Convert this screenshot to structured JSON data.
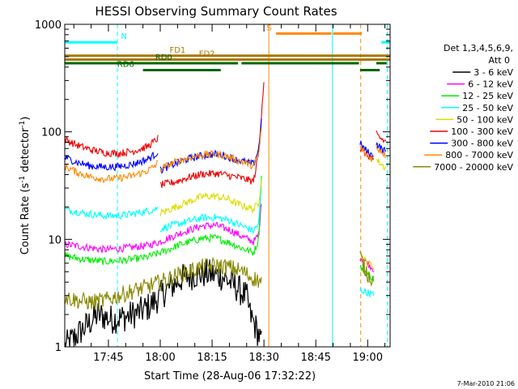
{
  "chart_data": {
    "type": "line",
    "title": "HESSI Observing Summary Count Rates",
    "xlabel": "Start Time (28-Aug-06 17:32:22)",
    "ylabel_main": "Count Rate (s",
    "ylabel_sup1": "-1",
    "ylabel_mid": " detector",
    "ylabel_sup2": "-1",
    "ylabel_end": ")",
    "yscale": "log",
    "ylim": [
      1,
      1000
    ],
    "xlim_minutes_after_1730": [
      2.37,
      96.5
    ],
    "x_ticks": [
      {
        "label": "17:45",
        "m": 15
      },
      {
        "label": "18:00",
        "m": 30
      },
      {
        "label": "18:15",
        "m": 45
      },
      {
        "label": "18:30",
        "m": 60
      },
      {
        "label": "18:45",
        "m": 75
      },
      {
        "label": "19:00",
        "m": 90
      }
    ],
    "y_ticks": [
      {
        "label": "1",
        "v": 1
      },
      {
        "label": "10",
        "v": 10
      },
      {
        "label": "100",
        "v": 100
      },
      {
        "label": "1000",
        "v": 1000
      }
    ],
    "legend_header": [
      "Det 1,3,4,5,6,9,",
      "Att 0"
    ],
    "series": [
      {
        "name": "3 - 6 keV",
        "color": "#000000",
        "segments": [
          {
            "m": [
              2.4,
              8,
              12,
              16,
              20,
              24,
              27,
              30,
              33,
              36,
              40,
              44,
              48,
              52,
              55,
              56,
              58.5,
              59.5
            ],
            "v": [
              1.0,
              1.5,
              2.0,
              1.8,
              1.9,
              2.1,
              2.4,
              3.0,
              3.6,
              4.3,
              4.7,
              4.8,
              4.5,
              3.6,
              2.9,
              2.0,
              1.3,
              1.0
            ]
          }
        ]
      },
      {
        "name": "6 - 12 keV",
        "color": "#ff00ff",
        "segments": [
          {
            "m": [
              2.4,
              8,
              14,
              20,
              26,
              30,
              36,
              42,
              46,
              50,
              54,
              57,
              58.5,
              59.5
            ],
            "v": [
              9,
              8.5,
              8,
              8.3,
              8.7,
              9.5,
              11.5,
              13.3,
              13.5,
              12.3,
              10.5,
              9.5,
              11,
              27
            ]
          },
          {
            "m": [
              87.8,
              90,
              92
            ],
            "v": [
              6.8,
              6,
              5.2
            ]
          }
        ]
      },
      {
        "name": "12 - 25 keV",
        "color": "#00ee00",
        "segments": [
          {
            "m": [
              2.4,
              8,
              14,
              20,
              26,
              30,
              36,
              42,
              46,
              50,
              54,
              57,
              58.5,
              59.5
            ],
            "v": [
              7,
              6.5,
              6.2,
              6.4,
              6.8,
              7.5,
              9,
              10.2,
              10.3,
              9.3,
              8.2,
              7.5,
              10,
              60
            ]
          },
          {
            "m": [
              87.8,
              90,
              92
            ],
            "v": [
              5.5,
              4.8,
              4.2
            ]
          }
        ]
      },
      {
        "name": "25 - 50 keV",
        "color": "#00ffff",
        "segments": [
          {
            "m": [
              2.4,
              8,
              14,
              20,
              26,
              29.5
            ],
            "v": [
              19,
              17.5,
              16.5,
              16.8,
              18.2,
              19.5
            ]
          },
          {
            "m": [
              30,
              36,
              42,
              46,
              50,
              52,
              55,
              57,
              58.5,
              59.5
            ],
            "v": [
              12.5,
              14.2,
              15.8,
              16,
              15,
              14,
              12.8,
              12,
              14,
              40
            ]
          },
          {
            "m": [
              87.8,
              89,
              90,
              92
            ],
            "v": [
              3.4,
              3.3,
              3.2,
              3.0
            ]
          }
        ]
      },
      {
        "name": "50 - 100 keV",
        "color": "#dddd00",
        "segments": [
          {
            "m": [
              30,
              36,
              42,
              46,
              50,
              52,
              55,
              57,
              58.5,
              59.5
            ],
            "v": [
              17.5,
              21,
              25,
              25.2,
              23.5,
              21.5,
              20,
              19,
              22,
              45
            ]
          },
          {
            "m": [
              87.8,
              89,
              90,
              91,
              92
            ],
            "v": [
              7.5,
              6.5,
              6,
              5.8,
              5.5
            ]
          },
          {
            "m": [
              92.5,
              94,
              95.5
            ],
            "v": [
              55,
              50,
              45
            ]
          }
        ]
      },
      {
        "name": "100 - 300 keV",
        "color": "#ee0000",
        "segments": [
          {
            "m": [
              2.4,
              6,
              10,
              14,
              18,
              22,
              26,
              28,
              29.5
            ],
            "v": [
              85,
              75,
              68,
              64,
              63,
              66,
              72,
              80,
              88
            ]
          },
          {
            "m": [
              30,
              34,
              38,
              42,
              46,
              48,
              50,
              52,
              55,
              57,
              58.5,
              59.5,
              60
            ],
            "v": [
              32,
              34,
              37.5,
              40.5,
              41,
              40.5,
              39,
              38,
              36,
              34.5,
              65,
              190,
              300
            ]
          },
          {
            "m": [
              87.8,
              89,
              90,
              91,
              92
            ],
            "v": [
              70,
              64,
              60,
              58,
              55
            ]
          },
          {
            "m": [
              92.5,
              93.5,
              95.5
            ],
            "v": [
              95,
              88,
              80
            ]
          }
        ]
      },
      {
        "name": "300 - 800 keV",
        "color": "#0000ff",
        "segments": [
          {
            "m": [
              2.4,
              6,
              10,
              14,
              18,
              22,
              26,
              28,
              29.5
            ],
            "v": [
              58,
              52,
              48,
              47,
              47.5,
              50,
              55,
              60,
              66
            ]
          },
          {
            "m": [
              30,
              34,
              38,
              42,
              46,
              48,
              50,
              52,
              55,
              57,
              58.5,
              59.5
            ],
            "v": [
              44,
              50,
              56,
              60,
              62,
              61,
              58,
              55,
              52,
              50,
              70,
              150
            ]
          },
          {
            "m": [
              87.8,
              89,
              90,
              91,
              92
            ],
            "v": [
              78,
              70,
              65,
              61,
              58
            ]
          },
          {
            "m": [
              92.5,
              94,
              95.5
            ],
            "v": [
              78,
              70,
              64
            ]
          }
        ]
      },
      {
        "name": "800 - 7000 keV",
        "color": "#ff8800",
        "segments": [
          {
            "m": [
              2.4,
              6,
              10,
              14,
              18,
              22,
              26,
              28,
              29.5
            ],
            "v": [
              48,
              42,
              38,
              36.5,
              37,
              39,
              43,
              47,
              52
            ]
          },
          {
            "m": [
              30,
              34,
              38,
              42,
              46,
              48,
              50,
              52,
              55,
              57,
              58.5,
              59.5
            ],
            "v": [
              45,
              52,
              57,
              61,
              62,
              61,
              58,
              55,
              51,
              48,
              62,
              130
            ]
          },
          {
            "m": [
              87.8,
              89,
              90,
              91,
              92
            ],
            "v": [
              72,
              65,
              60,
              57,
              55
            ]
          },
          {
            "m": [
              92.5,
              94,
              95.5
            ],
            "v": [
              72,
              66,
              60
            ]
          }
        ]
      },
      {
        "name": "7000 - 20000 keV",
        "color": "#888800",
        "segments": [
          {
            "m": [
              2.4,
              6,
              10,
              14,
              18,
              22,
              26,
              30,
              34,
              38,
              42,
              46,
              50,
              54,
              56,
              58,
              59.5
            ],
            "v": [
              2.9,
              2.7,
              2.6,
              2.7,
              3.0,
              3.3,
              3.6,
              4.0,
              4.5,
              5.0,
              5.5,
              5.7,
              5.5,
              5.0,
              4.5,
              4.2,
              4.0
            ]
          },
          {
            "m": [
              87.8,
              89,
              90,
              91,
              92
            ],
            "v": [
              7,
              5.5,
              4.8,
              4.4,
              4.0
            ]
          }
        ]
      }
    ],
    "flag_bars": [
      {
        "label": "N",
        "color": "#00ffff",
        "level": 680,
        "ranges": [
          [
            2.37,
            17.5
          ],
          [
            94,
            96.5
          ]
        ],
        "label_m": 19.5
      },
      {
        "label": "S",
        "color": "#ff8800",
        "level": 820,
        "ranges": [
          [
            63.5,
            79.5
          ],
          [
            80,
            88.3
          ]
        ],
        "label_m": 61.5
      },
      {
        "label": "FD1",
        "color": "#aa7700",
        "level": 510,
        "ranges": [
          [
            2.37,
            96.5
          ]
        ],
        "label_m": 35
      },
      {
        "label": "FD2",
        "color": "#aa7700",
        "level": 470,
        "ranges": [
          [
            2.37,
            96.5
          ]
        ],
        "label_m": 43.5
      },
      {
        "label": "RD0",
        "color": "#006600",
        "level": 435,
        "ranges": [
          [
            2.37,
            52.5
          ],
          [
            53.5,
            87.5
          ],
          [
            92.5,
            95.5
          ]
        ],
        "label_m": 31
      },
      {
        "label": "RD6",
        "color": "#006600",
        "level": 375,
        "ranges": [
          [
            25,
            47.5
          ],
          [
            87.8,
            93.5
          ]
        ],
        "label_m": 20
      }
    ],
    "vlines": [
      {
        "m": 17.6,
        "color": "#00ffff",
        "dash": true
      },
      {
        "m": 61.4,
        "color": "#ff8800",
        "dash": false
      },
      {
        "m": 79.8,
        "color": "#00ffff",
        "dash": false
      },
      {
        "m": 88.0,
        "color": "#ff8800",
        "dash": true
      },
      {
        "m": 95.7,
        "color": "#00ffff",
        "dash": true
      }
    ],
    "footer": "7-Mar-2010 21:06"
  }
}
